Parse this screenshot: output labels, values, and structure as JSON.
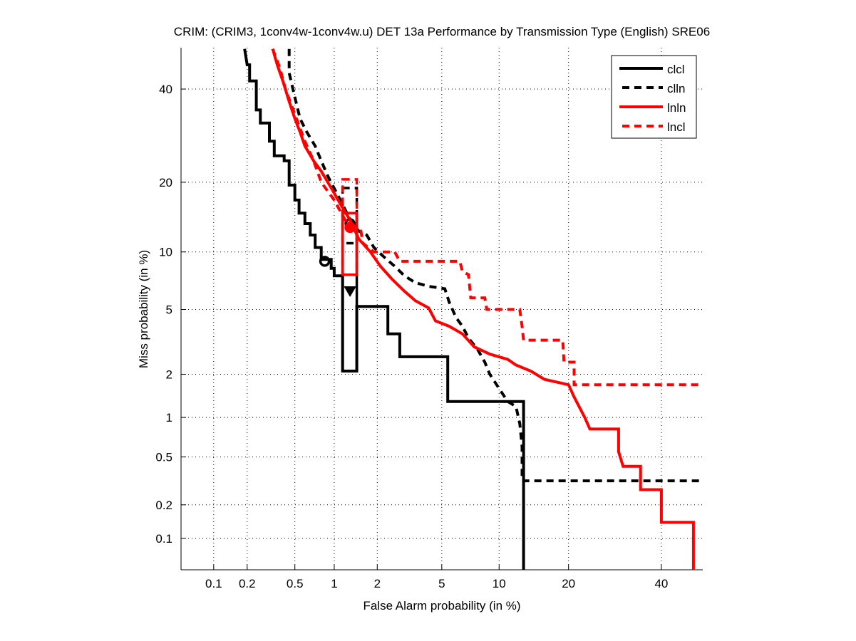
{
  "chart_data": {
    "type": "line",
    "title": "CRIM: (CRIM3, 1conv4w-1conv4w.u) DET 13a Performance by Transmission Type (English) SRE06",
    "xlabel": "False Alarm probability (in %)",
    "ylabel": "Miss probability (in %)",
    "x_scale": "probit",
    "y_scale": "probit",
    "xlim": [
      0.05,
      50
    ],
    "ylim": [
      0.05,
      50
    ],
    "x_ticks": [
      0.1,
      0.2,
      0.5,
      1,
      2,
      5,
      10,
      20,
      40
    ],
    "x_tick_labels": [
      "0.1",
      "0.2",
      "0.5",
      "1",
      "2",
      "5",
      "10",
      "20",
      "40"
    ],
    "y_ticks": [
      0.1,
      0.2,
      0.5,
      1,
      2,
      5,
      10,
      20,
      40
    ],
    "y_tick_labels": [
      "0.1",
      "0.2",
      "0.5",
      "1",
      "2",
      "5",
      "10",
      "20",
      "40"
    ],
    "grid": true,
    "legend_position": "top-right",
    "series": [
      {
        "name": "clcl",
        "color": "#000000",
        "dash": "solid",
        "points": [
          [
            0.19,
            50
          ],
          [
            0.2,
            46
          ],
          [
            0.21,
            46
          ],
          [
            0.21,
            42
          ],
          [
            0.24,
            42
          ],
          [
            0.24,
            35
          ],
          [
            0.26,
            35
          ],
          [
            0.26,
            32
          ],
          [
            0.31,
            32
          ],
          [
            0.31,
            28
          ],
          [
            0.34,
            28
          ],
          [
            0.34,
            25
          ],
          [
            0.41,
            25
          ],
          [
            0.41,
            24
          ],
          [
            0.45,
            24
          ],
          [
            0.45,
            19.5
          ],
          [
            0.5,
            19.5
          ],
          [
            0.5,
            17
          ],
          [
            0.54,
            17
          ],
          [
            0.54,
            15
          ],
          [
            0.6,
            15
          ],
          [
            0.6,
            13.5
          ],
          [
            0.66,
            13.5
          ],
          [
            0.66,
            12
          ],
          [
            0.72,
            12
          ],
          [
            0.72,
            10.5
          ],
          [
            0.8,
            10.5
          ],
          [
            0.8,
            9.2
          ],
          [
            0.95,
            9.2
          ],
          [
            0.95,
            8.3
          ],
          [
            1.0,
            8.3
          ],
          [
            1.0,
            7.6
          ],
          [
            1.15,
            7.6
          ],
          [
            1.15,
            2.1
          ],
          [
            1.45,
            2.1
          ],
          [
            1.45,
            5.2
          ],
          [
            2.35,
            5.2
          ],
          [
            2.35,
            3.6
          ],
          [
            2.8,
            3.6
          ],
          [
            2.8,
            2.6
          ],
          [
            5.4,
            2.6
          ],
          [
            5.4,
            1.3
          ],
          [
            13.0,
            1.3
          ],
          [
            13.0,
            0.05
          ]
        ],
        "operating_points": [
          {
            "label": "actual",
            "x": 0.85,
            "y": 9.0,
            "marker": "circle"
          },
          {
            "label": "min",
            "x": 1.3,
            "y": 6.3,
            "marker": "triangle"
          }
        ],
        "confidence_box": {
          "x": [
            1.15,
            1.45
          ],
          "y": [
            2.1,
            15
          ]
        }
      },
      {
        "name": "clln",
        "color": "#000000",
        "dash": "dashed",
        "points": [
          [
            0.45,
            50
          ],
          [
            0.45,
            44
          ],
          [
            0.5,
            38
          ],
          [
            0.55,
            33
          ],
          [
            0.62,
            30
          ],
          [
            0.72,
            27
          ],
          [
            0.8,
            24
          ],
          [
            0.9,
            21
          ],
          [
            1.05,
            18
          ],
          [
            1.2,
            15.5
          ],
          [
            1.35,
            13.5
          ],
          [
            1.5,
            12.5
          ],
          [
            1.7,
            12
          ],
          [
            1.9,
            10.5
          ],
          [
            2.2,
            9.5
          ],
          [
            2.6,
            8.5
          ],
          [
            3.0,
            7.6
          ],
          [
            3.5,
            7.0
          ],
          [
            4.2,
            6.7
          ],
          [
            5.2,
            6.5
          ],
          [
            5.5,
            5.5
          ],
          [
            6.0,
            4.5
          ],
          [
            6.5,
            4.0
          ],
          [
            7.0,
            3.4
          ],
          [
            7.8,
            2.9
          ],
          [
            8.5,
            2.4
          ],
          [
            9.0,
            2.0
          ],
          [
            10.0,
            1.6
          ],
          [
            11.0,
            1.3
          ],
          [
            12.0,
            1.2
          ],
          [
            12.5,
            0.9
          ],
          [
            12.8,
            0.6
          ],
          [
            12.8,
            0.32
          ],
          [
            50,
            0.32
          ]
        ],
        "operating_points": [
          {
            "label": "actual",
            "x": 1.3,
            "y": 13.5,
            "marker": "circle"
          }
        ],
        "confidence_box": {
          "x": [
            1.15,
            1.45
          ],
          "y": [
            11,
            19
          ]
        }
      },
      {
        "name": "lnln",
        "color": "#ff0000",
        "dash": "solid",
        "points": [
          [
            0.33,
            50
          ],
          [
            0.36,
            46
          ],
          [
            0.4,
            42
          ],
          [
            0.45,
            37
          ],
          [
            0.5,
            33
          ],
          [
            0.55,
            30
          ],
          [
            0.6,
            27
          ],
          [
            0.7,
            24
          ],
          [
            0.8,
            22
          ],
          [
            0.95,
            19
          ],
          [
            1.1,
            16.5
          ],
          [
            1.3,
            14
          ],
          [
            1.5,
            11.5
          ],
          [
            1.8,
            10
          ],
          [
            2.1,
            8.5
          ],
          [
            2.5,
            7.3
          ],
          [
            3.0,
            6.3
          ],
          [
            3.5,
            5.6
          ],
          [
            4.2,
            5.1
          ],
          [
            4.6,
            4.3
          ],
          [
            5.5,
            4.0
          ],
          [
            6.5,
            3.6
          ],
          [
            7.5,
            3.0
          ],
          [
            9.0,
            2.7
          ],
          [
            11.0,
            2.5
          ],
          [
            12.0,
            2.3
          ],
          [
            14.0,
            2.1
          ],
          [
            16.0,
            1.85
          ],
          [
            20.0,
            1.7
          ],
          [
            21.0,
            1.4
          ],
          [
            23.0,
            1.0
          ],
          [
            24.0,
            0.82
          ],
          [
            30.0,
            0.82
          ],
          [
            30.0,
            0.55
          ],
          [
            31.0,
            0.42
          ],
          [
            35.0,
            0.42
          ],
          [
            35.0,
            0.27
          ],
          [
            40.0,
            0.27
          ],
          [
            40.0,
            0.14
          ],
          [
            48.0,
            0.14
          ],
          [
            48.0,
            0.05
          ]
        ],
        "operating_points": [
          {
            "label": "actual",
            "x": 1.3,
            "y": 13.0,
            "marker": "circle"
          }
        ],
        "confidence_box": {
          "x": [
            1.15,
            1.45
          ],
          "y": [
            7.7,
            15
          ]
        }
      },
      {
        "name": "lncl",
        "color": "#ff0000",
        "dash": "dashed",
        "points": [
          [
            0.33,
            50
          ],
          [
            0.38,
            45
          ],
          [
            0.42,
            40
          ],
          [
            0.5,
            34
          ],
          [
            0.6,
            28
          ],
          [
            0.7,
            24
          ],
          [
            0.8,
            20
          ],
          [
            1.0,
            17
          ],
          [
            1.2,
            14
          ],
          [
            1.45,
            12.5
          ],
          [
            1.55,
            12.5
          ],
          [
            1.6,
            11.0
          ],
          [
            1.9,
            10.0
          ],
          [
            2.1,
            10.0
          ],
          [
            2.6,
            10.0
          ],
          [
            2.8,
            9.0
          ],
          [
            6.3,
            9.0
          ],
          [
            6.5,
            8.0
          ],
          [
            7.0,
            7.7
          ],
          [
            7.2,
            5.8
          ],
          [
            8.5,
            5.8
          ],
          [
            8.7,
            5.0
          ],
          [
            12.5,
            5.0
          ],
          [
            12.8,
            4.0
          ],
          [
            13.0,
            3.3
          ],
          [
            19.0,
            3.3
          ],
          [
            19.2,
            2.4
          ],
          [
            21.0,
            2.4
          ],
          [
            21.0,
            1.7
          ],
          [
            50,
            1.7
          ]
        ],
        "operating_points": [
          {
            "label": "actual",
            "x": 1.3,
            "y": 13.0,
            "marker": "circle"
          }
        ],
        "confidence_box": {
          "x": [
            1.15,
            1.45
          ],
          "y": [
            7.7,
            20.5
          ]
        }
      }
    ]
  }
}
